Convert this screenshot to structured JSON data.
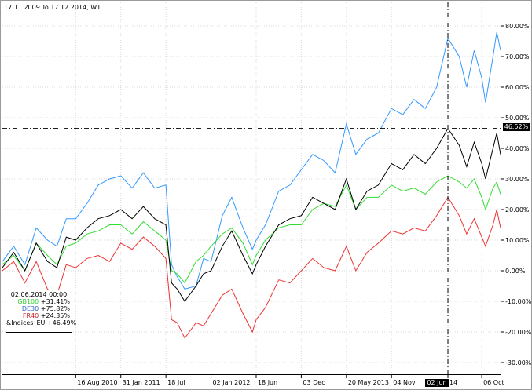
{
  "header": {
    "title": "17.11.2009 To 17.12.2014, W1"
  },
  "legend": {
    "date": "02.06.2014 00:00",
    "items": [
      {
        "name": "GB100",
        "value": "+31.41%",
        "color": "#33cc33"
      },
      {
        "name": "DE30",
        "value": "+75.82%",
        "color": "#3366cc"
      },
      {
        "name": "FR40",
        "value": "+24.35%",
        "color": "#cc2222"
      },
      {
        "name": "&Indices_EU",
        "value": "+46.49%",
        "color": "#000000"
      }
    ]
  },
  "crosshair": {
    "y_label": "46.52%",
    "x_label": "02 Jun"
  },
  "chart_data": {
    "type": "line",
    "ylim": [
      -35,
      85
    ],
    "y_ticks": [
      "80.00%",
      "70.00%",
      "60.00%",
      "50.00%",
      "40.00%",
      "30.00%",
      "20.00%",
      "10.00%",
      "0.00%",
      "-10.00%",
      "-20.00%",
      "-30.00%"
    ],
    "y_tick_values": [
      80,
      70,
      60,
      50,
      40,
      30,
      20,
      10,
      0,
      -10,
      -20,
      -30
    ],
    "x_ticks": [
      "16 Aug 2010",
      "31 Jan 2011",
      "18 Jul",
      "02 Jan 2012",
      "18 Jun",
      "03 Dec",
      "20 May 2013",
      "04 Nov",
      "14",
      "06 Oct"
    ],
    "x_tick_dates": [
      "2010-08-16",
      "2011-01-31",
      "2011-07-18",
      "2012-01-02",
      "2012-06-18",
      "2012-12-03",
      "2013-05-20",
      "2013-11-04",
      "2014-06-02",
      "2014-10-06"
    ],
    "x_range": [
      "2009-11-16",
      "2014-12-15"
    ],
    "crosshair_date": "2014-06-02",
    "crosshair_value": 46.52,
    "series": [
      {
        "name": "DE30",
        "color": "#3399ff",
        "points": [
          [
            "2009-11-16",
            3
          ],
          [
            "2009-12-28",
            8
          ],
          [
            "2010-02-08",
            2
          ],
          [
            "2010-03-22",
            14
          ],
          [
            "2010-05-03",
            10
          ],
          [
            "2010-06-07",
            8
          ],
          [
            "2010-07-12",
            17
          ],
          [
            "2010-08-16",
            17
          ],
          [
            "2010-09-27",
            22
          ],
          [
            "2010-11-08",
            28
          ],
          [
            "2010-12-20",
            30
          ],
          [
            "2011-01-31",
            31
          ],
          [
            "2011-03-14",
            27
          ],
          [
            "2011-04-25",
            32
          ],
          [
            "2011-06-06",
            27
          ],
          [
            "2011-07-18",
            28
          ],
          [
            "2011-08-08",
            2
          ],
          [
            "2011-08-29",
            -2
          ],
          [
            "2011-09-26",
            -6
          ],
          [
            "2011-11-07",
            -5
          ],
          [
            "2011-12-05",
            4
          ],
          [
            "2012-01-02",
            3
          ],
          [
            "2012-02-13",
            18
          ],
          [
            "2012-03-19",
            24
          ],
          [
            "2012-04-30",
            14
          ],
          [
            "2012-06-04",
            7
          ],
          [
            "2012-06-18",
            10
          ],
          [
            "2012-07-23",
            15
          ],
          [
            "2012-09-10",
            26
          ],
          [
            "2012-10-22",
            28
          ],
          [
            "2012-12-03",
            33
          ],
          [
            "2013-01-14",
            38
          ],
          [
            "2013-02-25",
            36
          ],
          [
            "2013-04-08",
            32
          ],
          [
            "2013-05-20",
            48
          ],
          [
            "2013-06-24",
            38
          ],
          [
            "2013-08-05",
            43
          ],
          [
            "2013-09-16",
            45
          ],
          [
            "2013-11-04",
            53
          ],
          [
            "2013-12-16",
            51
          ],
          [
            "2014-01-27",
            56
          ],
          [
            "2014-03-10",
            53
          ],
          [
            "2014-04-21",
            60
          ],
          [
            "2014-06-02",
            76
          ],
          [
            "2014-07-14",
            70
          ],
          [
            "2014-08-11",
            60
          ],
          [
            "2014-09-08",
            72
          ],
          [
            "2014-10-06",
            63
          ],
          [
            "2014-10-20",
            55
          ],
          [
            "2014-11-17",
            70
          ],
          [
            "2014-12-01",
            78
          ],
          [
            "2014-12-15",
            72
          ]
        ]
      },
      {
        "name": "GB100",
        "color": "#33dd33",
        "points": [
          [
            "2009-11-16",
            2
          ],
          [
            "2009-12-28",
            5
          ],
          [
            "2010-02-08",
            0
          ],
          [
            "2010-03-22",
            9
          ],
          [
            "2010-05-03",
            5
          ],
          [
            "2010-06-07",
            2
          ],
          [
            "2010-07-12",
            8
          ],
          [
            "2010-08-16",
            9
          ],
          [
            "2010-09-27",
            12
          ],
          [
            "2010-11-08",
            13
          ],
          [
            "2010-12-20",
            15
          ],
          [
            "2011-01-31",
            15
          ],
          [
            "2011-03-14",
            12
          ],
          [
            "2011-04-25",
            16
          ],
          [
            "2011-06-06",
            13
          ],
          [
            "2011-07-18",
            10
          ],
          [
            "2011-08-08",
            0
          ],
          [
            "2011-08-29",
            -1
          ],
          [
            "2011-09-26",
            -4
          ],
          [
            "2011-11-07",
            3
          ],
          [
            "2011-12-05",
            5
          ],
          [
            "2012-01-02",
            8
          ],
          [
            "2012-02-13",
            12
          ],
          [
            "2012-03-19",
            14
          ],
          [
            "2012-04-30",
            9
          ],
          [
            "2012-06-04",
            2
          ],
          [
            "2012-06-18",
            5
          ],
          [
            "2012-07-23",
            10
          ],
          [
            "2012-09-10",
            14
          ],
          [
            "2012-10-22",
            15
          ],
          [
            "2012-12-03",
            15
          ],
          [
            "2013-01-14",
            20
          ],
          [
            "2013-02-25",
            22
          ],
          [
            "2013-04-08",
            21
          ],
          [
            "2013-05-20",
            28
          ],
          [
            "2013-06-24",
            20
          ],
          [
            "2013-08-05",
            24
          ],
          [
            "2013-09-16",
            24
          ],
          [
            "2013-11-04",
            28
          ],
          [
            "2013-12-16",
            26
          ],
          [
            "2014-01-27",
            27
          ],
          [
            "2014-03-10",
            25
          ],
          [
            "2014-04-21",
            29
          ],
          [
            "2014-06-02",
            31
          ],
          [
            "2014-07-14",
            29
          ],
          [
            "2014-08-11",
            27
          ],
          [
            "2014-09-08",
            30
          ],
          [
            "2014-10-06",
            24
          ],
          [
            "2014-10-20",
            20
          ],
          [
            "2014-11-17",
            27
          ],
          [
            "2014-12-01",
            29
          ],
          [
            "2014-12-15",
            25
          ]
        ]
      },
      {
        "name": "FR40",
        "color": "#ee3333",
        "points": [
          [
            "2009-11-16",
            0
          ],
          [
            "2009-12-28",
            3
          ],
          [
            "2010-02-08",
            -4
          ],
          [
            "2010-03-22",
            3
          ],
          [
            "2010-05-03",
            -6
          ],
          [
            "2010-06-07",
            -8
          ],
          [
            "2010-07-12",
            2
          ],
          [
            "2010-08-16",
            1
          ],
          [
            "2010-09-27",
            4
          ],
          [
            "2010-11-08",
            5
          ],
          [
            "2010-12-20",
            3
          ],
          [
            "2011-01-31",
            9
          ],
          [
            "2011-03-14",
            7
          ],
          [
            "2011-04-25",
            11
          ],
          [
            "2011-06-06",
            8
          ],
          [
            "2011-07-18",
            4
          ],
          [
            "2011-08-08",
            -16
          ],
          [
            "2011-08-29",
            -17
          ],
          [
            "2011-09-26",
            -22
          ],
          [
            "2011-11-07",
            -17
          ],
          [
            "2011-12-05",
            -18
          ],
          [
            "2012-01-02",
            -14
          ],
          [
            "2012-02-13",
            -8
          ],
          [
            "2012-03-19",
            -6
          ],
          [
            "2012-04-30",
            -14
          ],
          [
            "2012-06-04",
            -20
          ],
          [
            "2012-06-18",
            -16
          ],
          [
            "2012-07-23",
            -12
          ],
          [
            "2012-09-10",
            -3
          ],
          [
            "2012-10-22",
            -4
          ],
          [
            "2012-12-03",
            0
          ],
          [
            "2013-01-14",
            4
          ],
          [
            "2013-02-25",
            1
          ],
          [
            "2013-04-08",
            0
          ],
          [
            "2013-05-20",
            8
          ],
          [
            "2013-06-24",
            0
          ],
          [
            "2013-08-05",
            6
          ],
          [
            "2013-09-16",
            9
          ],
          [
            "2013-11-04",
            13
          ],
          [
            "2013-12-16",
            12
          ],
          [
            "2014-01-27",
            14
          ],
          [
            "2014-03-10",
            13
          ],
          [
            "2014-04-21",
            18
          ],
          [
            "2014-06-02",
            24
          ],
          [
            "2014-07-14",
            18
          ],
          [
            "2014-08-11",
            12
          ],
          [
            "2014-09-08",
            17
          ],
          [
            "2014-10-06",
            11
          ],
          [
            "2014-10-20",
            8
          ],
          [
            "2014-11-17",
            15
          ],
          [
            "2014-12-01",
            20
          ],
          [
            "2014-12-15",
            14
          ]
        ]
      },
      {
        "name": "&Indices_EU",
        "color": "#000000",
        "points": [
          [
            "2009-11-16",
            1
          ],
          [
            "2009-12-28",
            6
          ],
          [
            "2010-02-08",
            0
          ],
          [
            "2010-03-22",
            9
          ],
          [
            "2010-05-03",
            3
          ],
          [
            "2010-06-07",
            1
          ],
          [
            "2010-07-12",
            11
          ],
          [
            "2010-08-16",
            10
          ],
          [
            "2010-09-27",
            14
          ],
          [
            "2010-11-08",
            17
          ],
          [
            "2010-12-20",
            18
          ],
          [
            "2011-01-31",
            20
          ],
          [
            "2011-03-14",
            17
          ],
          [
            "2011-04-25",
            21
          ],
          [
            "2011-06-06",
            17
          ],
          [
            "2011-07-18",
            15
          ],
          [
            "2011-08-08",
            -4
          ],
          [
            "2011-08-29",
            -6
          ],
          [
            "2011-09-26",
            -10
          ],
          [
            "2011-11-07",
            -5
          ],
          [
            "2011-12-05",
            -1
          ],
          [
            "2012-01-02",
            0
          ],
          [
            "2012-02-13",
            8
          ],
          [
            "2012-03-19",
            13
          ],
          [
            "2012-04-30",
            5
          ],
          [
            "2012-06-04",
            -1
          ],
          [
            "2012-06-18",
            2
          ],
          [
            "2012-07-23",
            8
          ],
          [
            "2012-09-10",
            15
          ],
          [
            "2012-10-22",
            17
          ],
          [
            "2012-12-03",
            18
          ],
          [
            "2013-01-14",
            24
          ],
          [
            "2013-02-25",
            22
          ],
          [
            "2013-04-08",
            20
          ],
          [
            "2013-05-20",
            30
          ],
          [
            "2013-06-24",
            20
          ],
          [
            "2013-08-05",
            26
          ],
          [
            "2013-09-16",
            28
          ],
          [
            "2013-11-04",
            35
          ],
          [
            "2013-12-16",
            33
          ],
          [
            "2014-01-27",
            38
          ],
          [
            "2014-03-10",
            35
          ],
          [
            "2014-04-21",
            40
          ],
          [
            "2014-06-02",
            46.5
          ],
          [
            "2014-07-14",
            41
          ],
          [
            "2014-08-11",
            34
          ],
          [
            "2014-09-08",
            42
          ],
          [
            "2014-10-06",
            35
          ],
          [
            "2014-10-20",
            30
          ],
          [
            "2014-11-17",
            40
          ],
          [
            "2014-12-01",
            45
          ],
          [
            "2014-12-15",
            38
          ]
        ]
      }
    ]
  }
}
